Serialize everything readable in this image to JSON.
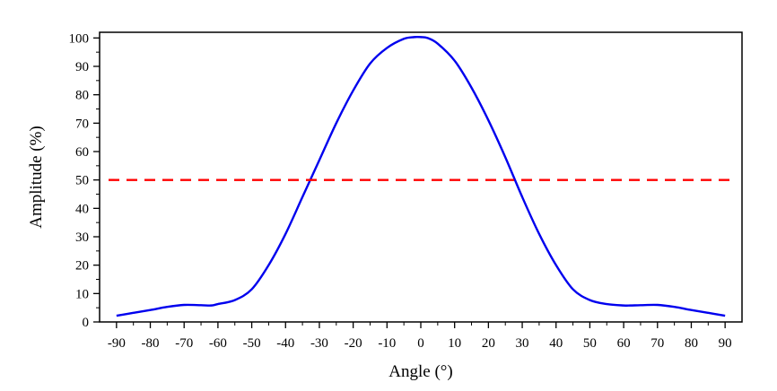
{
  "chart_data": {
    "type": "line",
    "xlabel": "Angle (°)",
    "ylabel": "Amplitude (%)",
    "xlim": [
      -95,
      95
    ],
    "ylim": [
      0,
      102
    ],
    "xticks": [
      -90,
      -80,
      -70,
      -60,
      -50,
      -40,
      -30,
      -20,
      -10,
      0,
      10,
      20,
      30,
      40,
      50,
      60,
      70,
      80,
      90
    ],
    "yticks": [
      0,
      10,
      20,
      30,
      40,
      50,
      60,
      70,
      80,
      90,
      100
    ],
    "grid": false,
    "series": [
      {
        "color": "#0000ee",
        "style": "solid",
        "x": [
          -90,
          -85,
          -80,
          -75,
          -70,
          -65,
          -62,
          -60,
          -55,
          -50,
          -45,
          -40,
          -35,
          -30,
          -25,
          -20,
          -15,
          -10,
          -5,
          -2,
          0,
          2,
          5,
          10,
          15,
          20,
          25,
          30,
          35,
          40,
          45,
          50,
          55,
          60,
          62,
          65,
          70,
          75,
          80,
          85,
          90
        ],
        "y": [
          2.2,
          3.2,
          4.2,
          5.3,
          6.0,
          5.9,
          5.8,
          6.3,
          7.7,
          11.5,
          20.0,
          31.0,
          44.0,
          57.0,
          70.0,
          81.5,
          91.0,
          96.5,
          99.7,
          100.3,
          100.3,
          100.0,
          98.0,
          92.0,
          82.5,
          71.0,
          58.0,
          44.0,
          31.0,
          20.0,
          11.5,
          7.7,
          6.3,
          5.8,
          5.8,
          5.9,
          6.0,
          5.3,
          4.2,
          3.2,
          2.2
        ]
      },
      {
        "color": "#ff0000",
        "style": "dashed",
        "x": [
          -95,
          95
        ],
        "y": [
          50,
          50
        ]
      }
    ]
  }
}
